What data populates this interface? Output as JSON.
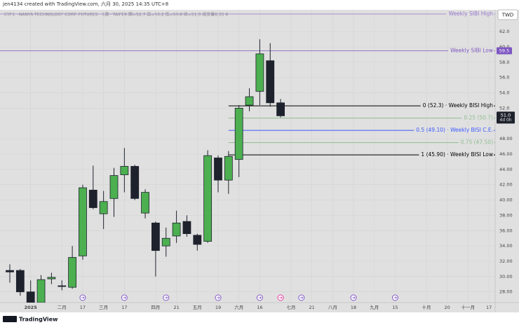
{
  "header": {
    "credit": "jen4134 created with TradingView.com, 六月 30, 2025 14:35 UTC+8",
    "symbol": "CYF1 · NANYA TECHNOLOGY CORP. FUTURES · 1週 · TAIFEX  開=52.7 高=53.2 低=50.8 收=51.0 成交量6.35 K",
    "currency": "TWD"
  },
  "footer": {
    "brand": "TradingView"
  },
  "chart_data": {
    "type": "candlestick",
    "categories": [
      null,
      null,
      "2025",
      null,
      null,
      "二月",
      null,
      "17",
      null,
      "三月",
      null,
      "17",
      null,
      null,
      "四月",
      null,
      "21",
      null,
      "五月",
      null,
      "19",
      null,
      "六月",
      null,
      "16",
      null,
      null,
      "七月",
      null,
      "21",
      null,
      "八月",
      null,
      "18",
      null,
      "九月",
      null,
      "15",
      null,
      null,
      "十月",
      null,
      "20",
      null,
      "十一月",
      null,
      "17"
    ],
    "open": [
      30.8,
      30.8,
      28.0,
      26.6,
      29.7,
      28.8,
      28.6,
      32.7,
      41.3,
      38.2,
      40.2,
      43.3,
      44.4,
      38.3,
      37.0,
      34.0,
      35.3,
      37.2,
      35.4,
      34.6,
      45.5,
      42.6,
      45.3,
      52.4,
      54.2,
      58.2,
      52.7,
      null,
      null,
      null,
      null,
      null,
      null,
      null,
      null,
      null,
      null,
      null,
      null,
      null,
      null,
      null,
      null,
      null,
      null,
      null,
      null
    ],
    "high": [
      31.6,
      31.0,
      29.5,
      30.2,
      30.5,
      29.5,
      34.0,
      42.0,
      44.5,
      41.2,
      44.2,
      46.8,
      44.6,
      41.4,
      37.2,
      36.4,
      38.6,
      38.0,
      35.6,
      46.5,
      45.8,
      46.4,
      52.4,
      54.6,
      61.0,
      60.5,
      53.2,
      null,
      null,
      null,
      null,
      null,
      null,
      null,
      null,
      null,
      null,
      null,
      null,
      null,
      null,
      null,
      null,
      null,
      null,
      null,
      null
    ],
    "low": [
      29.2,
      27.5,
      26.4,
      26.4,
      29.0,
      28.2,
      28.4,
      32.2,
      38.8,
      36.2,
      37.8,
      41.0,
      40.0,
      37.6,
      30.0,
      32.6,
      34.4,
      35.2,
      33.4,
      34.4,
      41.0,
      40.8,
      43.0,
      51.6,
      52.4,
      52.2,
      50.8,
      null,
      null,
      null,
      null,
      null,
      null,
      null,
      null,
      null,
      null,
      null,
      null,
      null,
      null,
      null,
      null,
      null,
      null,
      null,
      null
    ],
    "close": [
      30.6,
      28.0,
      26.6,
      29.6,
      29.9,
      28.7,
      32.5,
      41.6,
      39.0,
      39.8,
      43.2,
      44.4,
      40.2,
      41.0,
      33.4,
      35.0,
      37.0,
      35.6,
      34.2,
      45.8,
      42.6,
      45.7,
      52.0,
      53.5,
      59.1,
      52.7,
      51.0,
      null,
      null,
      null,
      null,
      null,
      null,
      null,
      null,
      null,
      null,
      null,
      null,
      null,
      null,
      null,
      null,
      null,
      null,
      null,
      null
    ],
    "up_color": "#4caf50",
    "down_color": "#1e222d",
    "ylim": [
      26.6,
      65.4
    ],
    "yticks": [
      {
        "value": 28,
        "label": "28.00"
      },
      {
        "value": 30,
        "label": "30.00"
      },
      {
        "value": 32,
        "label": "32.00"
      },
      {
        "value": 34,
        "label": "34.00"
      },
      {
        "value": 36,
        "label": "36.00"
      },
      {
        "value": 38,
        "label": "38.00"
      },
      {
        "value": 40,
        "label": "40.00"
      },
      {
        "value": 42,
        "label": "42.00"
      },
      {
        "value": 44,
        "label": "44.00"
      },
      {
        "value": 46,
        "label": "46.00"
      },
      {
        "value": 48,
        "label": "48.00"
      },
      {
        "value": 52,
        "label": "52.0"
      },
      {
        "value": 54,
        "label": "54.0"
      },
      {
        "value": 56,
        "label": "56.0"
      },
      {
        "value": 58,
        "label": "58.0"
      },
      {
        "value": 60,
        "label": "60.0"
      },
      {
        "value": 62,
        "label": "62.0"
      }
    ],
    "grid": true,
    "levels": [
      {
        "value": 64.3,
        "label": "Weekly SIBI High",
        "color": "#9575cd"
      },
      {
        "value": 59.5,
        "label": "Weekly SIBI Low",
        "color": "#7e57c2",
        "tag": "59.5"
      },
      {
        "value": 52.3,
        "label": "0 (52.3) · Weekly BISI High",
        "color": "#000000"
      },
      {
        "value": 50.7,
        "label": "0.25 (50.7)",
        "color": "#8fbc8f"
      },
      {
        "value": 49.1,
        "label": "0.5 (49.10) · Weekly BISI C.E.",
        "color": "#3d5afe"
      },
      {
        "value": 47.5,
        "label": "0.75 (47.50)",
        "color": "#8fbc8f"
      },
      {
        "value": 45.9,
        "label": "1 (45.90) · Weekly BISI Low",
        "color": "#000000"
      }
    ],
    "last_price": {
      "value": 51.0,
      "label": "51.0",
      "countdown": "4d 0h"
    }
  }
}
